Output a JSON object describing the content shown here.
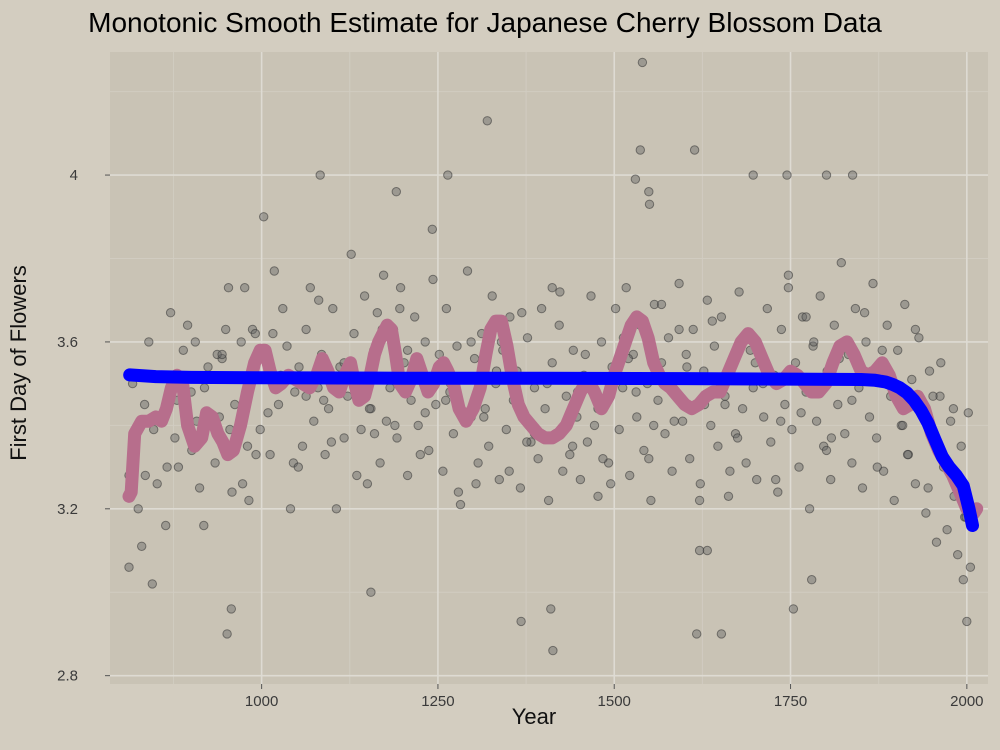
{
  "chart_data": {
    "type": "scatter",
    "title": "Monotonic Smooth Estimate for Japanese Cherry Blossom Data",
    "xlabel": "Year",
    "ylabel": "First Day of Flowers",
    "xlim": [
      785,
      2030
    ],
    "ylim": [
      2.78,
      4.295
    ],
    "x_ticks": [
      1000,
      1250,
      1500,
      1750,
      2000
    ],
    "y_ticks": [
      2.8,
      3.2,
      3.6,
      4.0
    ],
    "y_tick_labels": [
      "2.8",
      "3.2",
      "3.6",
      "4"
    ],
    "grid": true,
    "colors": {
      "background": "#d3cdc0",
      "panel": "#c9c3b5",
      "grid_major": "#dedbd3",
      "grid_minor": "#d1ccc1",
      "points": "#666666",
      "smooth": "#b76e8c",
      "monotonic": "#0000ff"
    },
    "series": [
      {
        "kind": "line",
        "style": "smooth",
        "x": [
          812,
          815,
          820,
          830,
          840,
          850,
          858,
          865,
          872,
          880,
          888,
          895,
          905,
          915,
          922,
          930,
          938,
          945,
          952,
          960,
          970,
          980,
          990,
          998,
          1005,
          1012,
          1020,
          1028,
          1038,
          1048,
          1058,
          1068,
          1078,
          1086,
          1094,
          1102,
          1110,
          1118,
          1126,
          1132,
          1138,
          1146,
          1154,
          1160,
          1166,
          1172,
          1178,
          1184,
          1190,
          1196,
          1204,
          1212,
          1220,
          1228,
          1236,
          1244,
          1252,
          1258,
          1264,
          1272,
          1280,
          1290,
          1300,
          1310,
          1318,
          1325,
          1332,
          1340,
          1348,
          1356,
          1364,
          1372,
          1382,
          1392,
          1402,
          1412,
          1422,
          1432,
          1442,
          1452,
          1462,
          1472,
          1482,
          1492,
          1500,
          1508,
          1516,
          1524,
          1532,
          1540,
          1548,
          1556,
          1564,
          1572,
          1580,
          1590,
          1600,
          1610,
          1620,
          1630,
          1640,
          1650,
          1660,
          1670,
          1680,
          1690,
          1700,
          1710,
          1720,
          1730,
          1740,
          1750,
          1760,
          1770,
          1780,
          1790,
          1800,
          1810,
          1820,
          1830,
          1840,
          1850,
          1860,
          1870,
          1880,
          1890,
          1900,
          1910,
          1920,
          1930,
          1940,
          1950,
          1960,
          1970,
          1980,
          1990,
          2000,
          2010,
          2014
        ],
        "y": [
          3.23,
          3.24,
          3.38,
          3.41,
          3.41,
          3.42,
          3.41,
          3.44,
          3.49,
          3.52,
          3.5,
          3.4,
          3.35,
          3.37,
          3.43,
          3.42,
          3.38,
          3.36,
          3.33,
          3.34,
          3.4,
          3.48,
          3.55,
          3.58,
          3.58,
          3.53,
          3.49,
          3.5,
          3.52,
          3.51,
          3.5,
          3.49,
          3.52,
          3.56,
          3.53,
          3.49,
          3.48,
          3.52,
          3.55,
          3.5,
          3.46,
          3.47,
          3.52,
          3.57,
          3.6,
          3.62,
          3.64,
          3.63,
          3.57,
          3.5,
          3.48,
          3.51,
          3.56,
          3.52,
          3.48,
          3.5,
          3.54,
          3.55,
          3.53,
          3.5,
          3.44,
          3.41,
          3.44,
          3.49,
          3.57,
          3.63,
          3.65,
          3.65,
          3.59,
          3.51,
          3.45,
          3.42,
          3.4,
          3.38,
          3.37,
          3.37,
          3.38,
          3.4,
          3.44,
          3.48,
          3.51,
          3.48,
          3.44,
          3.47,
          3.52,
          3.56,
          3.6,
          3.64,
          3.66,
          3.65,
          3.61,
          3.55,
          3.52,
          3.5,
          3.49,
          3.47,
          3.45,
          3.44,
          3.45,
          3.47,
          3.48,
          3.48,
          3.52,
          3.56,
          3.6,
          3.62,
          3.6,
          3.56,
          3.52,
          3.5,
          3.51,
          3.53,
          3.52,
          3.5,
          3.48,
          3.48,
          3.5,
          3.55,
          3.59,
          3.6,
          3.57,
          3.53,
          3.52,
          3.53,
          3.55,
          3.52,
          3.47,
          3.44,
          3.45,
          3.47,
          3.44,
          3.38,
          3.34,
          3.31,
          3.28,
          3.24,
          3.2,
          3.19,
          3.2
        ]
      },
      {
        "kind": "line",
        "style": "monotonic",
        "x": [
          813,
          850,
          900,
          1000,
          1200,
          1400,
          1600,
          1750,
          1850,
          1870,
          1885,
          1895,
          1905,
          1915,
          1925,
          1935,
          1945,
          1955,
          1965,
          1975,
          1985,
          1995,
          2003,
          2008
        ],
        "y": [
          3.521,
          3.517,
          3.515,
          3.514,
          3.513,
          3.513,
          3.512,
          3.511,
          3.51,
          3.508,
          3.504,
          3.498,
          3.49,
          3.478,
          3.46,
          3.436,
          3.405,
          3.365,
          3.325,
          3.3,
          3.28,
          3.255,
          3.2,
          3.16
        ]
      },
      {
        "kind": "points",
        "style": "points",
        "x": [
          812,
          817,
          825,
          834,
          840,
          847,
          852,
          858,
          864,
          871,
          877,
          882,
          889,
          895,
          900,
          906,
          912,
          918,
          924,
          928,
          934,
          940,
          944,
          949,
          953,
          958,
          962,
          966,
          971,
          976,
          982,
          987,
          992,
          998,
          1003,
          1008,
          1012,
          1018,
          1024,
          1030,
          1036,
          1041,
          1047,
          1053,
          1058,
          1063,
          1069,
          1074,
          1080,
          1085,
          1090,
          1095,
          1101,
          1106,
          1111,
          1117,
          1122,
          1127,
          1131,
          1136,
          1141,
          1146,
          1150,
          1155,
          1159,
          1164,
          1168,
          1173,
          1177,
          1182,
          1187,
          1192,
          1197,
          1202,
          1207,
          1212,
          1217,
          1222,
          1227,
          1232,
          1237,
          1242,
          1247,
          1252,
          1257,
          1262,
          1267,
          1272,
          1277,
          1282,
          1287,
          1292,
          1297,
          1302,
          1307,
          1312,
          1317,
          1322,
          1327,
          1332,
          1337,
          1342,
          1347,
          1352,
          1357,
          1362,
          1367,
          1372,
          1377,
          1382,
          1387,
          1392,
          1397,
          1402,
          1407,
          1412,
          1417,
          1422,
          1427,
          1432,
          1437,
          1442,
          1447,
          1452,
          1457,
          1462,
          1467,
          1472,
          1477,
          1482,
          1487,
          1492,
          1497,
          1502,
          1507,
          1512,
          1517,
          1522,
          1527,
          1532,
          1537,
          1542,
          1547,
          1552,
          1557,
          1562,
          1567,
          1572,
          1577,
          1582,
          1587,
          1592,
          1597,
          1602,
          1607,
          1612,
          1617,
          1622,
          1627,
          1632,
          1637,
          1642,
          1647,
          1652,
          1657,
          1662,
          1667,
          1672,
          1677,
          1682,
          1687,
          1692,
          1697,
          1702,
          1707,
          1712,
          1717,
          1722,
          1727,
          1732,
          1737,
          1742,
          1747,
          1752,
          1757,
          1762,
          1767,
          1772,
          1777,
          1782,
          1787,
          1792,
          1797,
          1802,
          1807,
          1812,
          1817,
          1822,
          1827,
          1832,
          1837,
          1842,
          1847,
          1852,
          1857,
          1862,
          1867,
          1872,
          1877,
          1882,
          1887,
          1892,
          1897,
          1902,
          1907,
          1912,
          1917,
          1922,
          1927,
          1932,
          1937,
          1942,
          1947,
          1952,
          1957,
          1962,
          1967,
          1972,
          1977,
          1982,
          1987,
          1992,
          1997,
          2002,
          2005,
          812,
          830,
          845,
          866,
          880,
          901,
          919,
          937,
          955,
          973,
          991,
          1009,
          1027,
          1045,
          1063,
          1081,
          1099,
          1117,
          1135,
          1153,
          1171,
          1189,
          1207,
          1225,
          1243,
          1261,
          1279,
          1297,
          1315,
          1333,
          1351,
          1369,
          1387,
          1405,
          1423,
          1441,
          1459,
          1477,
          1495,
          1513,
          1531,
          1549,
          1567,
          1585,
          1603,
          1621,
          1639,
          1657,
          1675,
          1693,
          1711,
          1729,
          1747,
          1765,
          1783,
          1801,
          1819,
          1837,
          1855,
          1873,
          1891,
          1909,
          1927,
          1945,
          1963,
          1981,
          1999,
          835,
          872,
          908,
          944,
          980,
          1016,
          1052,
          1088,
          1124,
          1160,
          1196,
          1232,
          1268,
          1304,
          1340,
          1376,
          1412,
          1448,
          1484,
          1520,
          1556,
          1592,
          1628,
          1664,
          1700,
          1736,
          1772,
          1808,
          1844,
          1880,
          1916,
          1952,
          1988,
          1540,
          1537,
          1614,
          1530,
          1697,
          1745,
          1801,
          1838,
          1083,
          1264,
          1320,
          1191,
          1550,
          1549,
          1413,
          1368,
          1155,
          1652,
          1617,
          957,
          951,
          1995,
          2000,
          1780,
          1754,
          1410,
          1621,
          1632
        ],
        "y": [
          3.06,
          3.5,
          3.2,
          3.45,
          3.6,
          3.39,
          3.26,
          3.52,
          3.16,
          3.67,
          3.37,
          3.3,
          3.58,
          3.64,
          3.48,
          3.6,
          3.25,
          3.16,
          3.54,
          3.41,
          3.31,
          3.42,
          3.56,
          3.63,
          3.73,
          3.24,
          3.45,
          3.36,
          3.6,
          3.73,
          3.22,
          3.63,
          3.33,
          3.39,
          3.9,
          3.55,
          3.33,
          3.77,
          3.45,
          3.68,
          3.59,
          3.2,
          3.48,
          3.54,
          3.35,
          3.63,
          3.73,
          3.41,
          3.49,
          3.57,
          3.33,
          3.44,
          3.68,
          3.2,
          3.54,
          3.37,
          3.47,
          3.81,
          3.62,
          3.5,
          3.39,
          3.71,
          3.26,
          3.44,
          3.58,
          3.67,
          3.31,
          3.76,
          3.41,
          3.49,
          3.63,
          3.37,
          3.73,
          3.55,
          3.28,
          3.46,
          3.66,
          3.4,
          3.52,
          3.6,
          3.34,
          3.87,
          3.45,
          3.57,
          3.29,
          3.68,
          3.48,
          3.38,
          3.59,
          3.21,
          3.51,
          3.77,
          3.42,
          3.56,
          3.31,
          3.62,
          3.44,
          3.35,
          3.71,
          3.5,
          3.27,
          3.58,
          3.39,
          3.66,
          3.46,
          3.53,
          3.25,
          3.43,
          3.61,
          3.36,
          3.49,
          3.32,
          3.68,
          3.44,
          3.22,
          3.55,
          3.38,
          3.64,
          3.29,
          3.47,
          3.33,
          3.58,
          3.42,
          3.27,
          3.52,
          3.36,
          3.71,
          3.4,
          3.23,
          3.6,
          3.45,
          3.31,
          3.54,
          3.68,
          3.39,
          3.49,
          3.73,
          3.28,
          3.57,
          3.42,
          3.64,
          3.34,
          3.5,
          3.22,
          3.69,
          3.46,
          3.55,
          3.38,
          3.61,
          3.29,
          3.48,
          3.74,
          3.41,
          3.57,
          3.32,
          3.63,
          3.45,
          3.26,
          3.53,
          3.7,
          3.4,
          3.59,
          3.35,
          3.66,
          3.47,
          3.23,
          3.55,
          3.38,
          3.72,
          3.44,
          3.31,
          3.61,
          3.49,
          3.27,
          3.58,
          3.42,
          3.68,
          3.36,
          3.52,
          3.24,
          3.63,
          3.45,
          3.76,
          3.39,
          3.55,
          3.3,
          3.66,
          3.48,
          3.2,
          3.59,
          3.41,
          3.71,
          3.35,
          3.53,
          3.27,
          3.64,
          3.45,
          3.79,
          3.38,
          3.57,
          3.31,
          3.68,
          3.49,
          3.25,
          3.6,
          3.42,
          3.74,
          3.37,
          3.55,
          3.29,
          3.64,
          3.47,
          3.22,
          3.58,
          3.4,
          3.69,
          3.33,
          3.51,
          3.26,
          3.61,
          3.44,
          3.19,
          3.53,
          3.37,
          3.12,
          3.47,
          3.3,
          3.15,
          3.41,
          3.23,
          3.09,
          3.35,
          3.18,
          3.43,
          3.06,
          3.28,
          3.11,
          3.02,
          3.3,
          3.46,
          3.34,
          3.49,
          3.57,
          3.39,
          3.26,
          3.62,
          3.43,
          3.52,
          3.31,
          3.47,
          3.7,
          3.36,
          3.55,
          3.28,
          3.44,
          3.63,
          3.4,
          3.58,
          3.33,
          3.75,
          3.46,
          3.24,
          3.6,
          3.42,
          3.53,
          3.29,
          3.67,
          3.38,
          3.5,
          3.72,
          3.35,
          3.57,
          3.44,
          3.26,
          3.61,
          3.48,
          3.32,
          3.69,
          3.41,
          3.54,
          3.22,
          3.65,
          3.45,
          3.37,
          3.58,
          3.5,
          3.27,
          3.73,
          3.43,
          3.6,
          3.34,
          3.56,
          3.46,
          3.67,
          3.3,
          3.52,
          3.4,
          3.63,
          3.25,
          3.55,
          3.44,
          3.18,
          3.28,
          3.52,
          3.41,
          3.57,
          3.35,
          3.62,
          3.3,
          3.46,
          3.54,
          3.38,
          3.68,
          3.43,
          3.5,
          3.26,
          3.6,
          3.36,
          3.73,
          3.48,
          3.32,
          3.56,
          3.4,
          3.63,
          3.45,
          3.29,
          3.55,
          3.41,
          3.66,
          3.37,
          3.51,
          3.58,
          3.33,
          3.47,
          3.24,
          4.27,
          4.06,
          4.06,
          3.99,
          4.0,
          4.0,
          4.0,
          4.0,
          4.0,
          4.0,
          4.13,
          3.96,
          3.93,
          3.96,
          2.86,
          2.93,
          3.0,
          2.9,
          2.9,
          2.96,
          2.9,
          3.03,
          2.93,
          3.03,
          2.96,
          2.96,
          3.1,
          3.1
        ]
      }
    ]
  }
}
